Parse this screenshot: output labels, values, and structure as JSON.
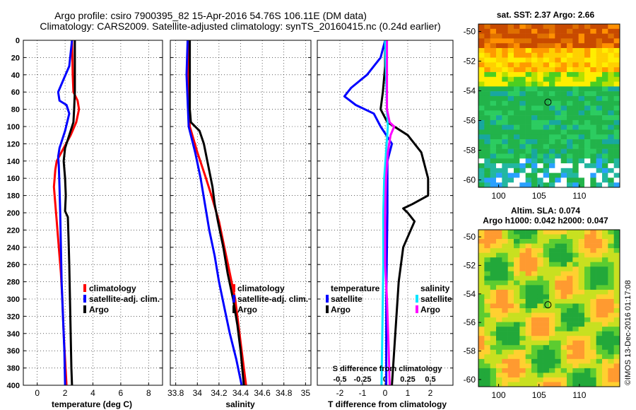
{
  "header": {
    "line1": "Argo profile: csiro 7900395_82 15-Apr-2016 54.76S 106.11E (DM data)",
    "line2": "Climatology: CARS2009. Satellite-adjusted climatology: synTS_20160415.nc (0.24d earlier)"
  },
  "colors": {
    "climatology": "#ff0000",
    "satellite": "#0000ff",
    "argo": "#000000",
    "sal_satellite": "#00e5ff",
    "sal_argo": "#ff00ff"
  },
  "depth_axis": {
    "range": [
      0,
      400
    ],
    "ticks": [
      "0",
      "20",
      "40",
      "60",
      "80",
      "100",
      "120",
      "140",
      "160",
      "180",
      "200",
      "220",
      "240",
      "260",
      "280",
      "300",
      "320",
      "340",
      "360",
      "380",
      "400"
    ]
  },
  "chart_data": [
    {
      "type": "line",
      "title": "temperature profile",
      "xlabel": "temperature (deg C)",
      "xlim": [
        -1,
        9
      ],
      "ylim": [
        400,
        0
      ],
      "xticks": [
        "0",
        "2",
        "4",
        "6",
        "8"
      ],
      "legend": [
        "climatology",
        "satellite-adj. clim.",
        "Argo"
      ],
      "series": [
        {
          "name": "climatology",
          "color": "#ff0000",
          "points": [
            [
              2.5,
              0
            ],
            [
              2.55,
              40
            ],
            [
              2.6,
              60
            ],
            [
              2.9,
              70
            ],
            [
              3.0,
              80
            ],
            [
              2.8,
              95
            ],
            [
              2.4,
              110
            ],
            [
              1.9,
              125
            ],
            [
              1.4,
              140
            ],
            [
              1.3,
              150
            ],
            [
              1.2,
              170
            ],
            [
              1.3,
              190
            ],
            [
              1.4,
              210
            ],
            [
              1.55,
              240
            ],
            [
              1.7,
              270
            ],
            [
              1.8,
              300
            ],
            [
              1.9,
              340
            ],
            [
              2.0,
              370
            ],
            [
              2.1,
              400
            ]
          ]
        },
        {
          "name": "satellite-adj. clim.",
          "color": "#0000ff",
          "points": [
            [
              2.5,
              0
            ],
            [
              2.3,
              30
            ],
            [
              1.9,
              45
            ],
            [
              1.5,
              60
            ],
            [
              1.6,
              70
            ],
            [
              2.1,
              75
            ],
            [
              2.3,
              85
            ],
            [
              2.0,
              105
            ],
            [
              1.6,
              125
            ],
            [
              1.5,
              135
            ],
            [
              1.55,
              145
            ],
            [
              1.6,
              170
            ],
            [
              1.65,
              200
            ],
            [
              1.7,
              240
            ],
            [
              1.75,
              280
            ],
            [
              1.85,
              320
            ],
            [
              1.95,
              360
            ],
            [
              2.0,
              400
            ]
          ]
        },
        {
          "name": "Argo",
          "color": "#000000",
          "points": [
            [
              2.7,
              0
            ],
            [
              2.7,
              30
            ],
            [
              2.7,
              60
            ],
            [
              2.65,
              80
            ],
            [
              2.6,
              95
            ],
            [
              2.3,
              110
            ],
            [
              2.0,
              125
            ],
            [
              1.9,
              140
            ],
            [
              2.0,
              160
            ],
            [
              2.05,
              180
            ],
            [
              2.0,
              198
            ],
            [
              2.2,
              205
            ],
            [
              2.25,
              230
            ],
            [
              2.3,
              260
            ],
            [
              2.35,
              300
            ],
            [
              2.4,
              340
            ],
            [
              2.45,
              380
            ],
            [
              2.5,
              400
            ]
          ]
        }
      ]
    },
    {
      "type": "line",
      "title": "salinity profile",
      "xlabel": "salinity",
      "xlim": [
        33.75,
        35.05
      ],
      "ylim": [
        400,
        0
      ],
      "xticks": [
        "33.8",
        "34",
        "34.2",
        "34.4",
        "34.6",
        "34.8",
        "35"
      ],
      "legend": [
        "climatology",
        "satellite-adj. clim.",
        "Argo"
      ],
      "series": [
        {
          "name": "climatology",
          "color": "#ff0000",
          "points": [
            [
              33.92,
              0
            ],
            [
              33.91,
              40
            ],
            [
              33.92,
              80
            ],
            [
              33.93,
              100
            ],
            [
              34.0,
              130
            ],
            [
              34.08,
              160
            ],
            [
              34.13,
              180
            ],
            [
              34.2,
              210
            ],
            [
              34.25,
              240
            ],
            [
              34.3,
              270
            ],
            [
              34.35,
              300
            ],
            [
              34.38,
              330
            ],
            [
              34.41,
              360
            ],
            [
              34.45,
              400
            ]
          ]
        },
        {
          "name": "satellite-adj. clim.",
          "color": "#0000ff",
          "points": [
            [
              33.91,
              0
            ],
            [
              33.9,
              40
            ],
            [
              33.91,
              70
            ],
            [
              33.92,
              100
            ],
            [
              33.98,
              130
            ],
            [
              34.03,
              160
            ],
            [
              34.07,
              190
            ],
            [
              34.11,
              220
            ],
            [
              34.16,
              250
            ],
            [
              34.2,
              280
            ],
            [
              34.25,
              310
            ],
            [
              34.3,
              340
            ],
            [
              34.36,
              370
            ],
            [
              34.41,
              400
            ]
          ]
        },
        {
          "name": "Argo",
          "color": "#000000",
          "points": [
            [
              33.93,
              0
            ],
            [
              33.93,
              40
            ],
            [
              33.93,
              80
            ],
            [
              33.94,
              95
            ],
            [
              34.02,
              105
            ],
            [
              34.06,
              120
            ],
            [
              34.1,
              145
            ],
            [
              34.14,
              170
            ],
            [
              34.16,
              190
            ],
            [
              34.19,
              210
            ],
            [
              34.24,
              240
            ],
            [
              34.28,
              270
            ],
            [
              34.33,
              300
            ],
            [
              34.37,
              330
            ],
            [
              34.4,
              360
            ],
            [
              34.43,
              400
            ]
          ]
        }
      ]
    },
    {
      "type": "line",
      "title": "difference from climatology",
      "xlabel": "T difference from climatology",
      "xlabel_top": "S difference from climatology",
      "xlim": [
        -3,
        3
      ],
      "ylim": [
        400,
        0
      ],
      "xticks": [
        "-2",
        "-1",
        "0",
        "1",
        "2"
      ],
      "xticks_top": [
        "-0.5",
        "-0.25",
        "0",
        "0.25",
        "0.5"
      ],
      "legend_left_title": "temperature",
      "legend_right_title": "salinity",
      "legend": [
        "satellite",
        "Argo",
        "satellite",
        "Argo"
      ],
      "series": [
        {
          "name": "T satellite",
          "color": "#0000ff",
          "points": [
            [
              0,
              0
            ],
            [
              -0.2,
              20
            ],
            [
              -0.8,
              40
            ],
            [
              -1.5,
              55
            ],
            [
              -1.8,
              65
            ],
            [
              -1.3,
              75
            ],
            [
              -0.5,
              85
            ],
            [
              -0.2,
              100
            ],
            [
              0.3,
              120
            ],
            [
              0.2,
              130
            ],
            [
              0.1,
              140
            ],
            [
              0.1,
              200
            ],
            [
              0.05,
              300
            ],
            [
              0.05,
              400
            ]
          ]
        },
        {
          "name": "T Argo",
          "color": "#000000",
          "points": [
            [
              0,
              0
            ],
            [
              0,
              30
            ],
            [
              -0.1,
              60
            ],
            [
              -0.2,
              80
            ],
            [
              0.1,
              95
            ],
            [
              1.0,
              110
            ],
            [
              1.6,
              130
            ],
            [
              1.9,
              160
            ],
            [
              1.9,
              180
            ],
            [
              1.2,
              190
            ],
            [
              0.8,
              195
            ],
            [
              1.0,
              200
            ],
            [
              1.3,
              210
            ],
            [
              0.8,
              240
            ],
            [
              0.6,
              280
            ],
            [
              0.5,
              320
            ],
            [
              0.4,
              360
            ],
            [
              0.3,
              400
            ]
          ]
        },
        {
          "name": "S satellite",
          "color": "#00e5ff",
          "points": [
            [
              0,
              0
            ],
            [
              0.01,
              40
            ],
            [
              0.02,
              80
            ],
            [
              0.03,
              100
            ],
            [
              0.01,
              130
            ],
            [
              -0.01,
              160
            ],
            [
              -0.02,
              200
            ],
            [
              -0.02,
              260
            ],
            [
              -0.03,
              330
            ],
            [
              -0.04,
              400
            ]
          ]
        },
        {
          "name": "S Argo",
          "color": "#ff00ff",
          "points": [
            [
              0.02,
              0
            ],
            [
              0.02,
              60
            ],
            [
              0.02,
              80
            ],
            [
              0.05,
              95
            ],
            [
              0.1,
              100
            ],
            [
              0.06,
              110
            ],
            [
              0.03,
              130
            ],
            [
              0.01,
              160
            ],
            [
              0.0,
              200
            ],
            [
              0.0,
              260
            ],
            [
              0.02,
              300
            ],
            [
              0.03,
              330
            ],
            [
              0.04,
              360
            ],
            [
              0.05,
              400
            ]
          ]
        }
      ]
    },
    {
      "type": "heatmap",
      "title": "sat. SST: 2.37 Argo: 2.66",
      "xticks": [
        "100",
        "105",
        "110"
      ],
      "yticks": [
        "-50",
        "-52",
        "-54",
        "-56",
        "-58",
        "-60"
      ],
      "xlim": [
        97.5,
        115
      ],
      "ylim": [
        -60.5,
        -49.5
      ],
      "marker": [
        106.11,
        -54.76
      ]
    },
    {
      "type": "heatmap",
      "title": "Altim. SLA: 0.074",
      "subtitle": "Argo h1000: 0.042 h2000: 0.047",
      "xticks": [
        "100",
        "105",
        "110"
      ],
      "yticks": [
        "-50",
        "-52",
        "-54",
        "-56",
        "-58",
        "-60"
      ],
      "xlim": [
        97.5,
        115
      ],
      "ylim": [
        -60.5,
        -49.5
      ],
      "marker": [
        106.11,
        -54.76
      ]
    }
  ],
  "panels": {
    "temp": {
      "xlabel": "temperature (deg C)",
      "legend": [
        "climatology",
        "satellite-adj. clim.",
        "Argo"
      ]
    },
    "sal": {
      "xlabel": "salinity",
      "legend": [
        "climatology",
        "satellite-adj. clim.",
        "Argo"
      ]
    },
    "diff": {
      "xlabel": "T difference from climatology",
      "xlabel_top": "S difference from climatology",
      "legend_left_title": "temperature",
      "legend_right_title": "salinity",
      "legend_left": [
        "satellite",
        "Argo"
      ],
      "legend_right": [
        "satellite",
        "Argo"
      ]
    },
    "sst": {
      "title": "sat. SST: 2.37 Argo: 2.66"
    },
    "sla": {
      "title": "Altim. SLA: 0.074",
      "subtitle": "Argo h1000: 0.042 h2000: 0.047"
    }
  },
  "credit": "©IMOS 13-Dec-2016 01:17:08"
}
